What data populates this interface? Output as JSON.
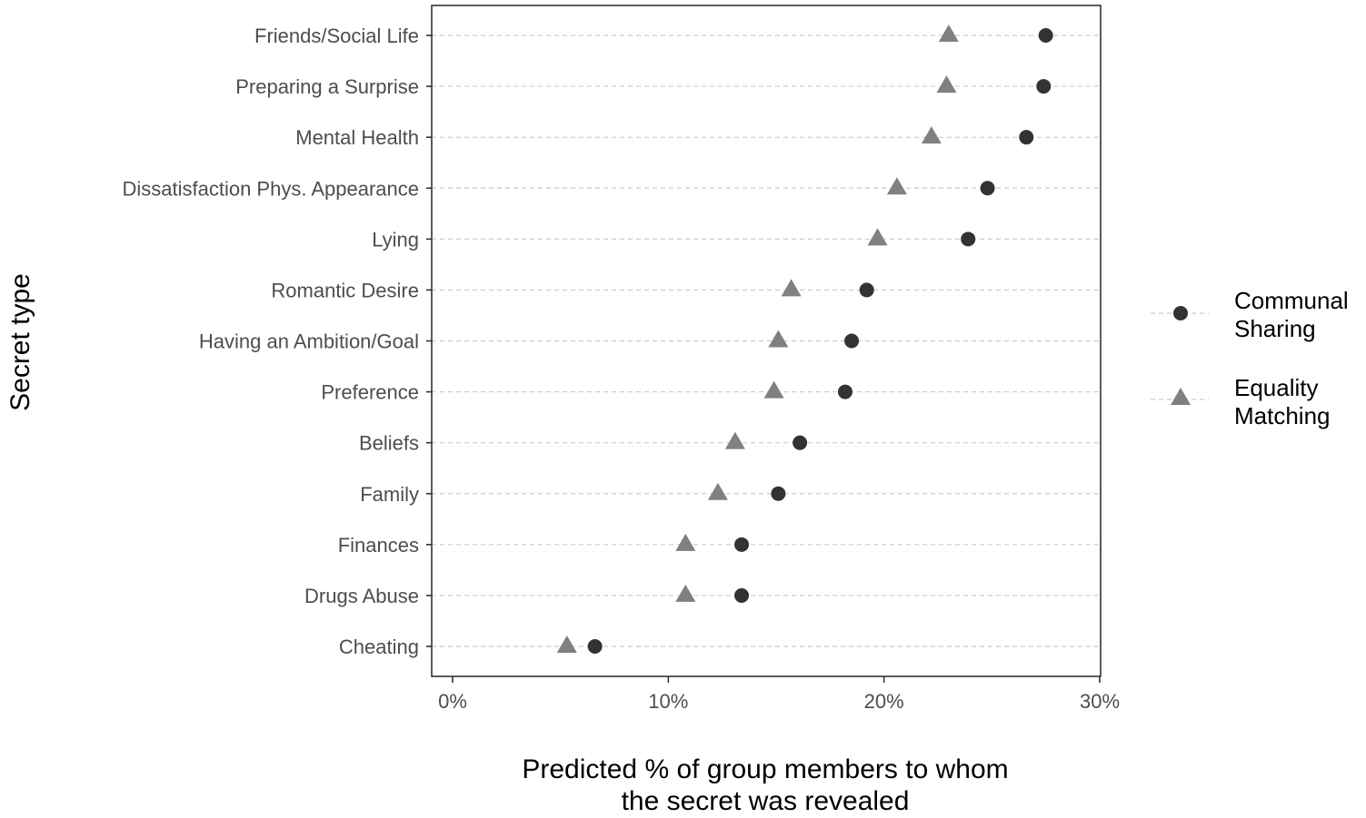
{
  "chart_data": {
    "type": "scatter",
    "title": "",
    "xlabel": [
      "Predicted % of group members to whom",
      "the secret was revealed"
    ],
    "ylabel": "Secret type",
    "xlim": [
      -0.97,
      30
    ],
    "x_ticks": [
      0,
      10,
      20,
      30
    ],
    "x_tick_labels": [
      "0%",
      "10%",
      "20%",
      "30%"
    ],
    "grid": "horizontal dashed",
    "legend_position": "right",
    "categories": [
      "Friends/Social Life",
      "Preparing a Surprise",
      "Mental Health",
      "Dissatisfaction Phys. Appearance",
      "Lying",
      "Romantic Desire",
      "Having an Ambition/Goal",
      "Preference",
      "Beliefs",
      "Family",
      "Finances",
      "Drugs Abuse",
      "Cheating"
    ],
    "series": [
      {
        "name": "Communal Sharing",
        "legend_label": [
          "Communal",
          "Sharing"
        ],
        "marker": "circle",
        "color": "#333333",
        "values": [
          27.5,
          27.4,
          26.6,
          24.8,
          23.9,
          19.2,
          18.5,
          18.2,
          16.1,
          15.1,
          13.4,
          13.4,
          6.6
        ]
      },
      {
        "name": "Equality Matching",
        "legend_label": [
          "Equality",
          "Matching"
        ],
        "marker": "triangle",
        "color": "#808080",
        "values": [
          23.0,
          22.9,
          22.2,
          20.6,
          19.7,
          15.7,
          15.1,
          14.9,
          13.1,
          12.3,
          10.8,
          10.8,
          5.3
        ]
      }
    ]
  }
}
